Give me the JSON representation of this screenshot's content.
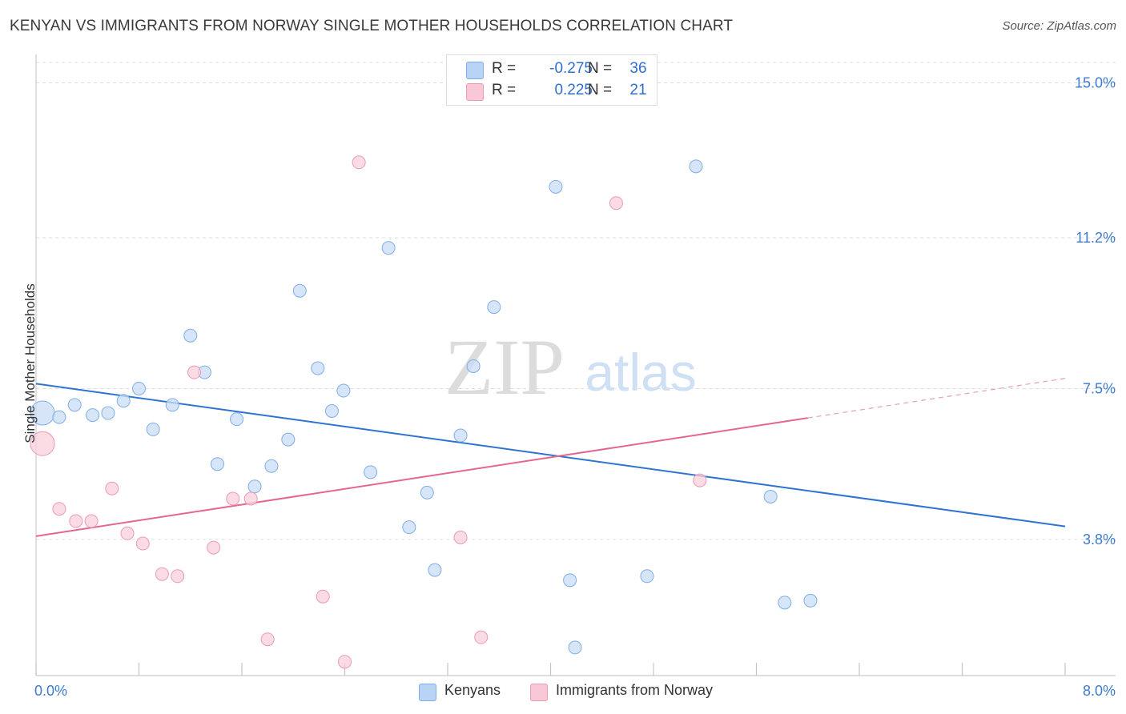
{
  "header": {
    "title": "KENYAN VS IMMIGRANTS FROM NORWAY SINGLE MOTHER HOUSEHOLDS CORRELATION CHART",
    "source": "Source: ZipAtlas.com"
  },
  "watermark": {
    "zip": "ZIP",
    "atlas": "atlas"
  },
  "legend": {
    "rows": [
      {
        "r_label": "R =",
        "r_value": "-0.275",
        "n_label": "N =",
        "n_value": "36",
        "color": "#b9d3f5",
        "border": "#7faee6"
      },
      {
        "r_label": "R =",
        "r_value": "0.225",
        "n_label": "N =",
        "n_value": "21",
        "color": "#f9c8d6",
        "border": "#ec9ab3"
      }
    ]
  },
  "bottom_legend": [
    {
      "label": "Kenyans",
      "color": "#b9d3f5",
      "border": "#7faee6"
    },
    {
      "label": "Immigrants from Norway",
      "color": "#f9c8d6",
      "border": "#ec9ab3"
    }
  ],
  "chart_data": {
    "type": "scatter",
    "ylabel": "Single Mother Households",
    "xlim": [
      0,
      8.0
    ],
    "ylim": [
      0.5,
      15.5
    ],
    "x_tick_labels": [
      "0.0%",
      "8.0%"
    ],
    "y_ticks": [
      3.8,
      7.5,
      11.2,
      15.0
    ],
    "y_tick_labels": [
      "3.8%",
      "7.5%",
      "11.2%",
      "15.0%"
    ],
    "grid": "horizontal dashed",
    "series": [
      {
        "name": "Kenyans",
        "color": "#7faee6",
        "fill": "#c8dcf6",
        "points": [
          [
            0.05,
            6.9,
            3
          ],
          [
            0.18,
            6.8,
            1
          ],
          [
            0.3,
            7.1,
            1
          ],
          [
            0.44,
            6.85,
            1
          ],
          [
            0.56,
            6.9,
            1
          ],
          [
            0.68,
            7.2,
            1
          ],
          [
            0.8,
            7.5,
            1
          ],
          [
            0.91,
            6.5,
            1
          ],
          [
            1.06,
            7.1,
            1
          ],
          [
            1.2,
            8.8,
            1
          ],
          [
            1.31,
            7.9,
            1
          ],
          [
            1.41,
            5.65,
            1
          ],
          [
            1.56,
            6.75,
            1
          ],
          [
            1.7,
            5.1,
            1
          ],
          [
            1.83,
            5.6,
            1
          ],
          [
            1.96,
            6.25,
            1
          ],
          [
            2.05,
            9.9,
            1
          ],
          [
            2.19,
            8.0,
            1
          ],
          [
            2.3,
            6.95,
            1
          ],
          [
            2.39,
            7.45,
            1
          ],
          [
            2.6,
            5.45,
            1
          ],
          [
            2.74,
            10.95,
            1
          ],
          [
            2.9,
            4.1,
            1
          ],
          [
            3.04,
            4.95,
            1
          ],
          [
            3.1,
            3.05,
            1
          ],
          [
            3.3,
            6.35,
            1
          ],
          [
            3.4,
            8.05,
            1
          ],
          [
            3.56,
            9.5,
            1
          ],
          [
            4.04,
            12.45,
            1
          ],
          [
            4.15,
            2.8,
            1
          ],
          [
            4.19,
            1.15,
            1
          ],
          [
            4.75,
            2.9,
            1
          ],
          [
            5.13,
            12.95,
            1
          ],
          [
            5.71,
            4.85,
            1
          ],
          [
            5.82,
            2.25,
            1
          ],
          [
            6.02,
            2.3,
            1
          ]
        ],
        "trend": {
          "x": [
            0,
            8.0
          ],
          "y": [
            7.62,
            4.12
          ]
        }
      },
      {
        "name": "Immigrants from Norway",
        "color": "#ec9ab3",
        "fill": "#f9cfdb",
        "points": [
          [
            0.05,
            6.15,
            3
          ],
          [
            0.18,
            4.55,
            1
          ],
          [
            0.31,
            4.25,
            1
          ],
          [
            0.43,
            4.25,
            1
          ],
          [
            0.59,
            5.05,
            1
          ],
          [
            0.71,
            3.95,
            1
          ],
          [
            0.83,
            3.7,
            1
          ],
          [
            0.98,
            2.95,
            1
          ],
          [
            1.1,
            2.9,
            1
          ],
          [
            1.23,
            7.9,
            1
          ],
          [
            1.38,
            3.6,
            1
          ],
          [
            1.53,
            4.8,
            1
          ],
          [
            1.67,
            4.8,
            1
          ],
          [
            1.8,
            1.35,
            1
          ],
          [
            2.23,
            2.4,
            1
          ],
          [
            2.4,
            0.8,
            1
          ],
          [
            2.51,
            13.05,
            1
          ],
          [
            3.3,
            3.85,
            1
          ],
          [
            3.46,
            1.4,
            1
          ],
          [
            4.51,
            12.05,
            1
          ],
          [
            5.16,
            5.25,
            1
          ]
        ],
        "trend": {
          "x": [
            0,
            6.0
          ],
          "y": [
            3.88,
            6.78
          ]
        },
        "trend_extension": {
          "x": [
            6.0,
            8.0
          ],
          "y": [
            6.78,
            7.75
          ]
        }
      }
    ]
  }
}
